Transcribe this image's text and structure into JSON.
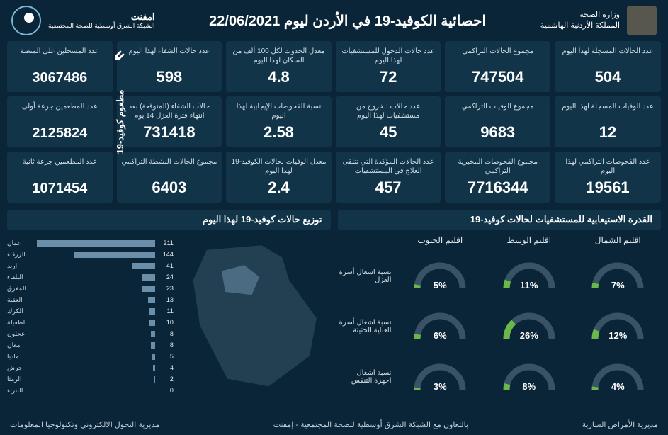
{
  "header": {
    "ministry_line1": "وزارة الصحة",
    "ministry_line2": "المملكة الأردنية الهاشمية",
    "title": "احصائية الكوفيد-19 في الأردن ليوم 22/06/2021",
    "org_name": "امفنت",
    "org_sub": "الشبكة الشرق أوسطية\nللصحة المجتمعية"
  },
  "colors": {
    "bg": "#0a2538",
    "card": "#123449",
    "bar": "#6b8fa8",
    "gauge_track": "#3a5266",
    "gauge_fill": "#6bb84a"
  },
  "vaccine": {
    "section_label": "مطعوم كوفيد-19",
    "cards": [
      {
        "label": "عدد المسجلين على المنصة",
        "value": "3067486"
      },
      {
        "label": "عدد المطعمين جرعة أولى",
        "value": "2125824"
      },
      {
        "label": "عدد المطعمين جرعة ثانية",
        "value": "1071454"
      }
    ]
  },
  "stats": [
    [
      {
        "label": "عدد الحالات المسجلة لهذا اليوم",
        "value": "504"
      },
      {
        "label": "عدد الوفيات المسجلة لهذا اليوم",
        "value": "12"
      },
      {
        "label": "عدد الفحوصات التراكمي لهذا اليوم",
        "value": "19561"
      }
    ],
    [
      {
        "label": "مجموع الحالات التراكمي",
        "value": "747504"
      },
      {
        "label": "مجموع الوفيات التراكمي",
        "value": "9683"
      },
      {
        "label": "مجموع الفحوصات المخبرية التراكمي",
        "value": "7716344"
      }
    ],
    [
      {
        "label": "عدد حالات الدخول للمستشفيات لهذا اليوم",
        "value": "72"
      },
      {
        "label": "عدد حالات الخروج من مستشفيات لهذا اليوم",
        "value": "45"
      },
      {
        "label": "عدد الحالات المؤكدة التي تتلقى العلاج في المستشفيات",
        "value": "457"
      }
    ],
    [
      {
        "label": "معدل الحدوث لكل 100 ألف من السكان لهذا اليوم",
        "value": "4.8"
      },
      {
        "label": "نسبة الفحوصات الإيجابية لهذا اليوم",
        "value": "2.58"
      },
      {
        "label": "معدل الوفيات لحالات الكوفيد-19 لهذا اليوم",
        "value": "2.4"
      }
    ],
    [
      {
        "label": "عدد حالات الشفاء لهذا اليوم",
        "value": "598"
      },
      {
        "label": "حالات الشفاء (المتوقعة) بعد انتهاء فترة العزل 14 يوم",
        "value": "731418"
      },
      {
        "label": "مجموع الحالات النشطة التراكمي",
        "value": "6403"
      }
    ]
  ],
  "capacity": {
    "title": "القدرة الاستيعابية للمستشفيات لحالات كوفيد-19",
    "regions": [
      "اقليم الشمال",
      "اقليم الوسط",
      "اقليم الجنوب"
    ],
    "rows": [
      {
        "label": "نسبة اشغال أسرة العزل",
        "values": [
          7,
          11,
          5
        ]
      },
      {
        "label": "نسبة اشغال أسرة العناية الحثيثة",
        "values": [
          12,
          26,
          6
        ]
      },
      {
        "label": "نسبة اشغال اجهزة التنفس",
        "values": [
          4,
          8,
          3
        ]
      }
    ]
  },
  "distribution": {
    "title": "توزيع حالات كوفيد-19 لهذا اليوم",
    "max": 211,
    "bars": [
      {
        "label": "عمان",
        "value": 211
      },
      {
        "label": "الزرقاء",
        "value": 144
      },
      {
        "label": "اربد",
        "value": 41
      },
      {
        "label": "البلقاء",
        "value": 24
      },
      {
        "label": "المفرق",
        "value": 23
      },
      {
        "label": "العقبة",
        "value": 13
      },
      {
        "label": "الكرك",
        "value": 11
      },
      {
        "label": "الطفيلة",
        "value": 10
      },
      {
        "label": "عجلون",
        "value": 8
      },
      {
        "label": "معان",
        "value": 8
      },
      {
        "label": "مادبا",
        "value": 5
      },
      {
        "label": "جرش",
        "value": 4
      },
      {
        "label": "الرمثا",
        "value": 2
      },
      {
        "label": "البتراء",
        "value": 0
      }
    ]
  },
  "footer": {
    "right": "مديرية الأمراض السارية",
    "center": "بالتعاون مع الشبكة الشرق أوسطية للصحة المجتمعية - إمفنت",
    "left": "مديرية التحول الالكتروني وتكنولوجيا المعلومات"
  }
}
